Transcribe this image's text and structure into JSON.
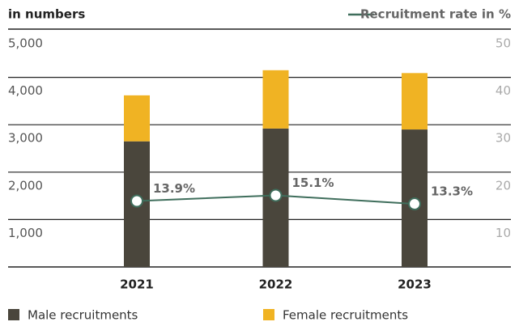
{
  "chart_data": {
    "type": "bar",
    "y_axis_label": "in numbers",
    "categories": [
      "2021",
      "2022",
      "2023"
    ],
    "series": [
      {
        "name": "Male recruitments",
        "color": "#4a463c",
        "values": [
          2650,
          2920,
          2900
        ]
      },
      {
        "name": "Female recruitments",
        "color": "#f0b323",
        "values": [
          970,
          1230,
          1190
        ]
      },
      {
        "name": "Recruitment rate in %",
        "color": "#3f6e5c",
        "type": "line",
        "axis": "y2",
        "values": [
          13.9,
          15.1,
          13.3
        ],
        "value_labels": [
          "13.9%",
          "15.1%",
          "13.3%"
        ]
      }
    ],
    "stacked": true,
    "ylim": [
      0,
      5000
    ],
    "yticks": [
      {
        "value": 1000,
        "label": "1,000"
      },
      {
        "value": 2000,
        "label": "2,000"
      },
      {
        "value": 3000,
        "label": "3,000"
      },
      {
        "value": 4000,
        "label": "4,000"
      },
      {
        "value": 5000,
        "label": "5,000"
      }
    ],
    "y2lim": [
      0,
      50
    ],
    "y2ticks": [
      10,
      20,
      30,
      40,
      50
    ],
    "grid": true
  }
}
